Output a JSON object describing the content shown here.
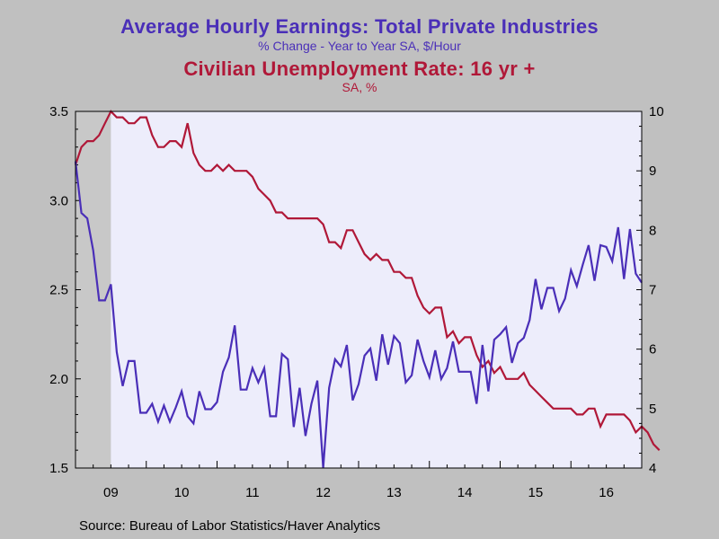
{
  "titles": {
    "title1": "Average Hourly Earnings: Total Private Industries",
    "subtitle1": "% Change - Year to Year    SA, $/Hour",
    "title2": "Civilian Unemployment Rate: 16 yr +",
    "subtitle2": "SA, %"
  },
  "source": "Source:  Bureau of Labor Statistics/Haver Analytics",
  "colors": {
    "earnings": "#4a2fb8",
    "unemployment": "#b01838",
    "plot_bg": "#ededfb",
    "page_bg": "#c0c0c0",
    "recession": "#c8c8c8"
  },
  "chart_data": {
    "type": "line",
    "x_start": "2009-01",
    "frequency": "monthly",
    "x_tick_labels": [
      "09",
      "10",
      "11",
      "12",
      "13",
      "14",
      "15",
      "16"
    ],
    "left_axis": {
      "ylim": [
        1.5,
        3.5
      ],
      "ticks": [
        "1.5",
        "2.0",
        "2.5",
        "3.0",
        "3.5"
      ]
    },
    "right_axis": {
      "ylim": [
        4,
        10
      ],
      "ticks": [
        "4",
        "5",
        "6",
        "7",
        "8",
        "9",
        "10"
      ]
    },
    "recession_shading": {
      "start": "2009-01",
      "end": "2009-06"
    },
    "series": [
      {
        "name": "Average Hourly Earnings: Total Private Industries",
        "axis": "left",
        "values": [
          3.22,
          2.93,
          2.9,
          2.72,
          2.44,
          2.44,
          2.53,
          2.15,
          1.96,
          2.1,
          2.1,
          1.81,
          1.81,
          1.86,
          1.76,
          1.85,
          1.76,
          1.84,
          1.93,
          1.79,
          1.75,
          1.93,
          1.83,
          1.83,
          1.87,
          2.04,
          2.12,
          2.3,
          1.94,
          1.94,
          2.06,
          1.98,
          2.06,
          1.79,
          1.79,
          2.14,
          2.11,
          1.73,
          1.95,
          1.68,
          1.86,
          1.99,
          1.5,
          1.95,
          2.11,
          2.07,
          2.19,
          1.88,
          1.97,
          2.13,
          2.17,
          1.99,
          2.25,
          2.08,
          2.24,
          2.2,
          1.98,
          2.02,
          2.22,
          2.1,
          2.01,
          2.16,
          2.0,
          2.06,
          2.21,
          2.04,
          2.04,
          2.04,
          1.86,
          2.19,
          1.93,
          2.22,
          2.25,
          2.29,
          2.09,
          2.2,
          2.23,
          2.33,
          2.56,
          2.39,
          2.51,
          2.51,
          2.38,
          2.45,
          2.61,
          2.52,
          2.64,
          2.75,
          2.55,
          2.75,
          2.74,
          2.66,
          2.85,
          2.56,
          2.84,
          2.59,
          2.54
        ]
      },
      {
        "name": "Civilian Unemployment Rate: 16 yr +",
        "axis": "right",
        "values": [
          9.1,
          9.4,
          9.5,
          9.5,
          9.6,
          9.8,
          10.0,
          9.9,
          9.9,
          9.8,
          9.8,
          9.9,
          9.9,
          9.6,
          9.4,
          9.4,
          9.5,
          9.5,
          9.4,
          9.8,
          9.3,
          9.1,
          9.0,
          9.0,
          9.1,
          9.0,
          9.1,
          9.0,
          9.0,
          9.0,
          8.9,
          8.7,
          8.6,
          8.5,
          8.3,
          8.3,
          8.2,
          8.2,
          8.2,
          8.2,
          8.2,
          8.2,
          8.1,
          7.8,
          7.8,
          7.7,
          8.0,
          8.0,
          7.8,
          7.6,
          7.5,
          7.6,
          7.5,
          7.5,
          7.3,
          7.3,
          7.2,
          7.2,
          6.9,
          6.7,
          6.6,
          6.7,
          6.7,
          6.2,
          6.3,
          6.1,
          6.2,
          6.2,
          5.9,
          5.7,
          5.8,
          5.6,
          5.7,
          5.5,
          5.5,
          5.5,
          5.6,
          5.4,
          5.3,
          5.2,
          5.1,
          5.0,
          5.0,
          5.0,
          5.0,
          4.9,
          4.9,
          5.0,
          5.0,
          4.7,
          4.9,
          4.9,
          4.9,
          4.9,
          4.8,
          4.6,
          4.7,
          4.6,
          4.4,
          4.3
        ]
      }
    ]
  }
}
